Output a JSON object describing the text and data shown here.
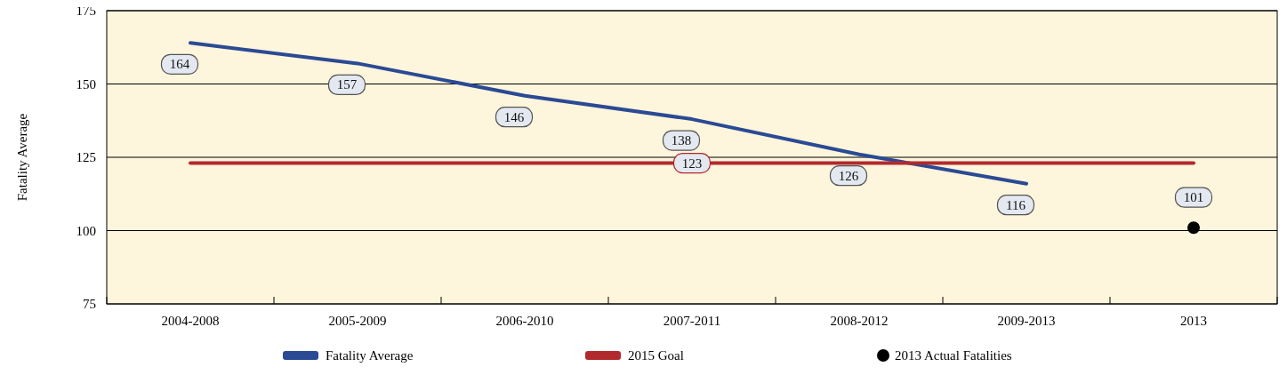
{
  "chart_data": {
    "type": "line",
    "ylabel": "Fatality Average",
    "categories": [
      "2004-2008",
      "2005-2009",
      "2006-2010",
      "2007-2011",
      "2008-2012",
      "2009-2013",
      "2013"
    ],
    "series": [
      {
        "name": "Fatality Average",
        "color": "#2b4a94",
        "values": [
          164,
          157,
          146,
          138,
          126,
          116,
          null
        ],
        "value_labels": [
          "164",
          "157",
          "146",
          "138",
          "126",
          "116",
          null
        ]
      },
      {
        "name": "2015 Goal",
        "color": "#b22a2e",
        "values": [
          123,
          123,
          123,
          123,
          123,
          123,
          123
        ],
        "value_labels": [
          null,
          null,
          null,
          "123",
          null,
          null,
          null
        ]
      },
      {
        "name": "2013 Actual Fatalities",
        "type": "scatter",
        "marker": "circle",
        "color": "#000000",
        "values": [
          null,
          null,
          null,
          null,
          null,
          null,
          101
        ],
        "value_labels": [
          null,
          null,
          null,
          null,
          null,
          null,
          "101"
        ]
      }
    ],
    "ylim": [
      75,
      175
    ],
    "yticks": [
      75,
      100,
      125,
      150,
      175
    ],
    "grid": "y",
    "legend": "bottom"
  }
}
